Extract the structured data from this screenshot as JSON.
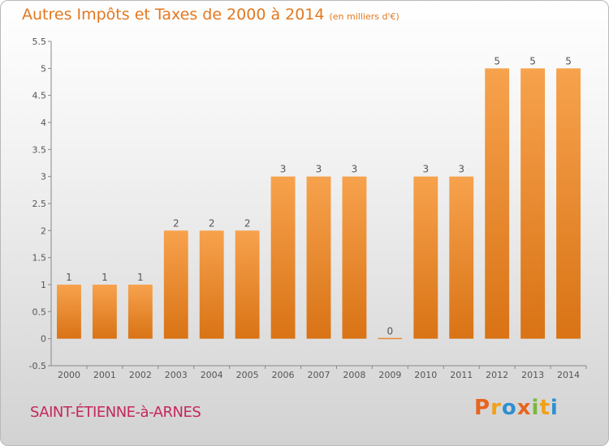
{
  "title": "Autres Impôts et Taxes de 2000 à 2014",
  "unit_note": "(en milliers d'€)",
  "place": "SAINT-ÉTIENNE-à-ARNES",
  "logo": {
    "letters": [
      "P",
      "r",
      "o",
      "x",
      "i",
      "t",
      "i"
    ],
    "colors": [
      "#e8641e",
      "#f2a016",
      "#2f8fd0",
      "#e8641e",
      "#7ab83a",
      "#f2a016",
      "#2f8fd0"
    ]
  },
  "colors": {
    "bar_light": "#f7a24d",
    "bar_dark": "#d97315",
    "text": "#555555"
  },
  "chart_data": {
    "type": "bar",
    "title": "Autres Impôts et Taxes de 2000 à 2014",
    "subtitle": "(en milliers d'€)",
    "categories": [
      "2000",
      "2001",
      "2002",
      "2003",
      "2004",
      "2005",
      "2006",
      "2007",
      "2008",
      "2009",
      "2010",
      "2011",
      "2012",
      "2013",
      "2014"
    ],
    "values": [
      1,
      1,
      1,
      2,
      2,
      2,
      3,
      3,
      3,
      0,
      3,
      3,
      5,
      5,
      5
    ],
    "data_labels": [
      "1",
      "1",
      "1",
      "2",
      "2",
      "2",
      "3",
      "3",
      "3",
      "0",
      "3",
      "3",
      "5",
      "5",
      "5"
    ],
    "yticks": [
      "-0.5",
      "0",
      "0.5",
      "1",
      "1.5",
      "2",
      "2.5",
      "3",
      "3.5",
      "4",
      "4.5",
      "5",
      "5.5"
    ],
    "ylim": [
      -0.5,
      5.5
    ],
    "xlabel": "",
    "ylabel": "",
    "grid": false,
    "legend": "none"
  }
}
